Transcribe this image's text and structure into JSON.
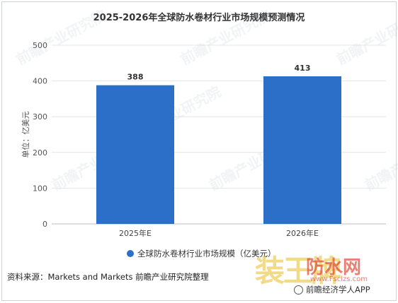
{
  "chart_data": {
    "type": "bar",
    "title": "2025-2026年全球防水卷材行业市场规模预测情况",
    "categories": [
      "2025年E",
      "2026年E"
    ],
    "series": [
      {
        "name": "全球防水卷材行业市场规模（亿美元）",
        "values": [
          388,
          413
        ]
      }
    ],
    "value_labels": [
      "388",
      "413"
    ],
    "ylabel": "单位：亿美元",
    "ylim": [
      0,
      500
    ],
    "yticks": [
      "0",
      "100",
      "200",
      "300",
      "400",
      "500"
    ],
    "grid": true,
    "legend": "bottom-center",
    "bar_color": "#2b6fc9"
  },
  "source_text": "资料来源：Markets and Markets 前瞻产业研究院整理",
  "brand_text": "前瞻经济学人APP",
  "watermark_text": "前瞻产业研究院",
  "corner_watermark": {
    "brand": "装王牌",
    "label": "防水网",
    "url": "www.Fsclzs.com"
  }
}
